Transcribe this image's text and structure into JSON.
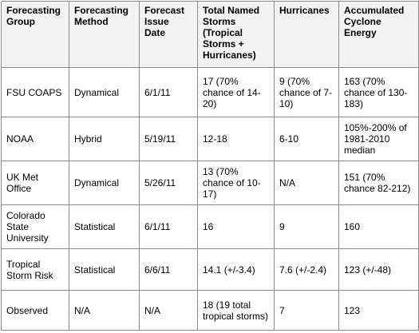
{
  "headers": [
    "Forecasting Group",
    "Forecasting Method",
    "Forecast Issue Date",
    "Total Named Storms (Tropical Storms + Hurricanes)",
    "Hurricanes",
    "Accumulated Cyclone Energy"
  ],
  "rows": [
    [
      "FSU COAPS",
      "Dynamical",
      "6/1/11",
      "17 (70% chance of 14-20)",
      "9 (70% chance of 7-10)",
      "163 (70% chance of 130-183)"
    ],
    [
      "NOAA",
      "Hybrid",
      "5/19/11",
      "12-18",
      "6-10",
      "105%-200% of 1981-2010 median"
    ],
    [
      "UK Met Office",
      "Dynamical",
      "5/26/11",
      "13 (70% chance of 10-17)",
      "N/A",
      "151 (70% chance 82-212)"
    ],
    [
      "Colorado State University",
      "Statistical",
      "6/1/11",
      "16",
      "9",
      "160"
    ],
    [
      "Tropical Storm Risk",
      "Statistical",
      "6/6/11",
      "14.1 (+/-3.4)",
      "7.6 (+/-2.4)",
      "123 (+/-48)"
    ],
    [
      "Observed",
      "N/A",
      "N/A",
      "18 (19 total tropical storms)",
      "7",
      "123"
    ]
  ]
}
